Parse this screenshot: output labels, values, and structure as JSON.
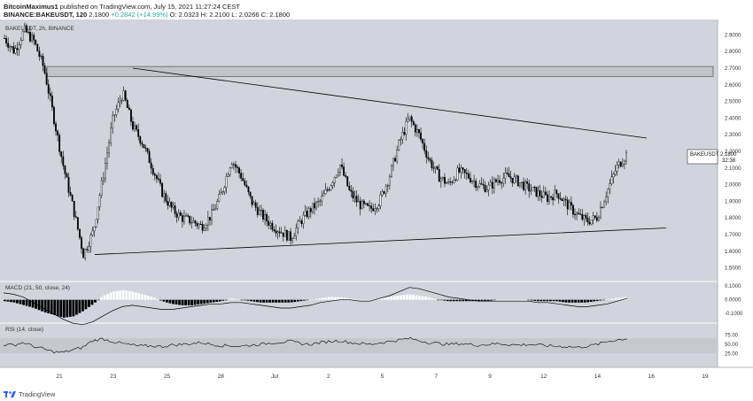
{
  "header": {
    "author": "BitcoinMaximus1",
    "published": "published on TradingView.com, July 15, 2021 11:27:24 CEST",
    "symbol_line": "BINANCE:BAKEUSDT, 120",
    "price": "2.1800",
    "change": "+0.2842 (+14.99%)",
    "ohlc": "O: 2.0323  H: 2.2100  L: 2.0266  C: 2.1800"
  },
  "legend": {
    "main": "BAKEUSDT, 2h, BINANCE"
  },
  "price_label": {
    "symbol": "BAKEUSDT",
    "value": "2.1800",
    "countdown": "32:38"
  },
  "macd_label": "MACD (21, 50, close, 24)",
  "rsi_label": "RSI (14, close)",
  "footer": {
    "brand": "TradingView"
  },
  "colors": {
    "bg": "#d1d4dc",
    "line": "#000000",
    "price_label_bg": "#ffffff"
  },
  "chart_data": [
    {
      "type": "candlestick",
      "title": "",
      "ylim": [
        1.45,
        2.95
      ],
      "y_ticks": [
        "1.5000",
        "1.6000",
        "1.7000",
        "1.8000",
        "1.9000",
        "2.0000",
        "2.1000",
        "2.2000",
        "2.3000",
        "2.4000",
        "2.5000",
        "2.6000",
        "2.7000",
        "2.8000",
        "2.9000"
      ],
      "x_ticks": [
        "21",
        "23",
        "25",
        "28",
        "Jul",
        "2",
        "5",
        "7",
        "9",
        "12",
        "14",
        "16",
        "19"
      ],
      "resistance_zone": [
        2.65,
        2.71
      ],
      "descending_trendline": [
        [
          0.0,
          2.7
        ],
        [
          1.0,
          2.28
        ]
      ],
      "ascending_trendline": [
        [
          0.0,
          1.58
        ],
        [
          1.0,
          1.74
        ]
      ],
      "price_path": [
        2.88,
        2.8,
        2.93,
        2.86,
        2.7,
        2.4,
        2.1,
        1.85,
        1.58,
        1.72,
        2.05,
        2.4,
        2.55,
        2.35,
        2.25,
        2.1,
        1.95,
        1.85,
        1.8,
        1.78,
        1.75,
        1.82,
        1.95,
        2.15,
        2.05,
        1.9,
        1.82,
        1.76,
        1.72,
        1.68,
        1.78,
        1.85,
        1.9,
        2.0,
        2.12,
        1.95,
        1.88,
        1.85,
        1.9,
        2.05,
        2.25,
        2.4,
        2.3,
        2.15,
        2.05,
        2.0,
        2.08,
        2.05,
        2.0,
        1.98,
        2.03,
        2.05,
        2.02,
        1.98,
        1.95,
        1.92,
        1.95,
        1.88,
        1.82,
        1.78,
        1.8,
        1.95,
        2.1,
        2.18
      ]
    },
    {
      "type": "bar",
      "name": "MACD (21, 50, close, 24)",
      "y_ticks": [
        "0.1000",
        "0.0000",
        "-0.1000"
      ],
      "histogram": [
        -0.01,
        -0.02,
        -0.04,
        -0.06,
        -0.09,
        -0.11,
        -0.13,
        -0.12,
        -0.08,
        -0.03,
        0.03,
        0.06,
        0.07,
        0.06,
        0.04,
        0.02,
        -0.01,
        -0.03,
        -0.04,
        -0.04,
        -0.03,
        -0.02,
        -0.01,
        0.01,
        0.0,
        -0.01,
        -0.02,
        -0.02,
        -0.02,
        -0.02,
        -0.01,
        0.0,
        0.01,
        0.02,
        0.02,
        0.01,
        0.0,
        0.0,
        0.01,
        0.02,
        0.03,
        0.04,
        0.03,
        0.02,
        0.0,
        -0.01,
        -0.01,
        -0.01,
        -0.01,
        -0.01,
        0.0,
        0.0,
        0.0,
        0.0,
        -0.01,
        -0.01,
        -0.01,
        -0.02,
        -0.02,
        -0.02,
        -0.01,
        0.0,
        0.01,
        0.02
      ],
      "macd_line": [
        0.05,
        0.04,
        0.02,
        -0.02,
        -0.06,
        -0.1,
        -0.14,
        -0.17,
        -0.18,
        -0.16,
        -0.12,
        -0.08,
        -0.05,
        -0.04,
        -0.05,
        -0.06,
        -0.07,
        -0.07,
        -0.06,
        -0.05,
        -0.04,
        -0.03,
        -0.03,
        -0.02,
        -0.02,
        -0.03,
        -0.04,
        -0.05,
        -0.06,
        -0.06,
        -0.05,
        -0.04,
        -0.02,
        -0.01,
        0.0,
        0.0,
        -0.01,
        -0.01,
        0.01,
        0.03,
        0.06,
        0.09,
        0.08,
        0.06,
        0.04,
        0.02,
        0.01,
        0.0,
        -0.01,
        -0.01,
        -0.01,
        -0.01,
        -0.01,
        -0.01,
        -0.02,
        -0.02,
        -0.03,
        -0.04,
        -0.05,
        -0.05,
        -0.04,
        -0.03,
        -0.01,
        0.01
      ]
    },
    {
      "type": "line",
      "name": "RSI (14, close)",
      "y_ticks": [
        "75.00",
        "50.00",
        "25.00"
      ],
      "values": [
        50,
        48,
        55,
        45,
        38,
        30,
        28,
        35,
        42,
        60,
        65,
        58,
        52,
        48,
        45,
        46,
        44,
        48,
        50,
        52,
        55,
        50,
        47,
        46,
        45,
        48,
        50,
        54,
        56,
        58,
        52,
        50,
        55,
        58,
        60,
        55,
        52,
        50,
        54,
        58,
        62,
        66,
        60,
        55,
        52,
        50,
        52,
        50,
        48,
        50,
        52,
        50,
        48,
        50,
        48,
        46,
        45,
        44,
        42,
        45,
        50,
        58,
        62,
        66
      ]
    }
  ]
}
